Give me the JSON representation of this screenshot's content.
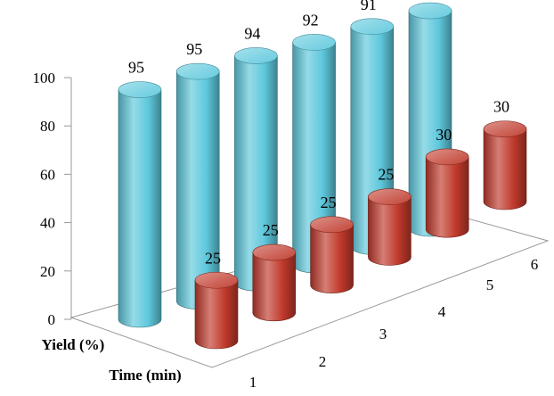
{
  "chart_data": {
    "type": "bar",
    "style": "3d-cylinder",
    "categories": [
      "1",
      "2",
      "3",
      "4",
      "5",
      "6"
    ],
    "series": [
      {
        "name": "Yield (%)",
        "color": "#5ec8dc",
        "values": [
          95,
          95,
          94,
          92,
          91,
          90
        ]
      },
      {
        "name": "Time (min)",
        "color": "#c0392b",
        "values": [
          25,
          25,
          25,
          25,
          30,
          30
        ]
      }
    ],
    "ylim": [
      0,
      100
    ],
    "yticks": [
      0,
      20,
      40,
      60,
      80,
      100
    ],
    "grid": false,
    "legend": "none"
  }
}
